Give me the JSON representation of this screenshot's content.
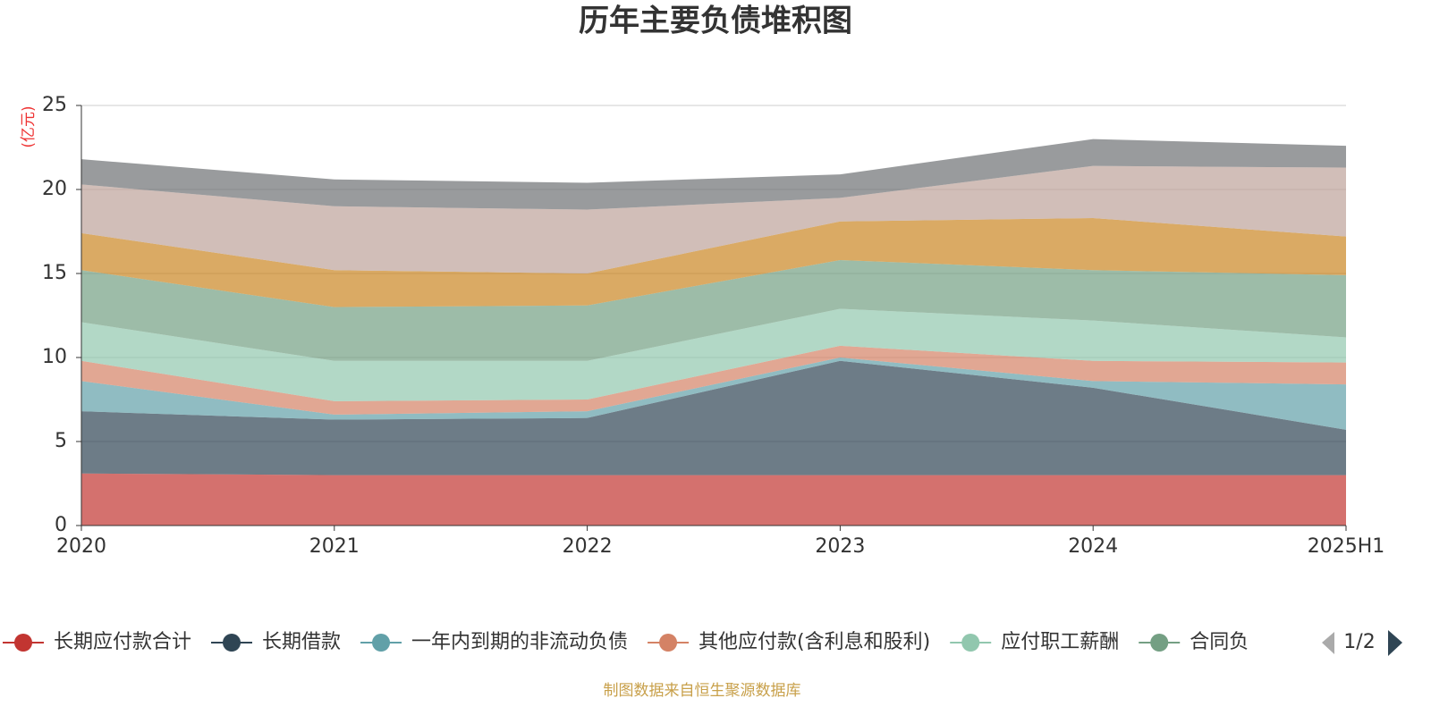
{
  "chart_data": {
    "type": "stacked_area",
    "title": "历年主要负债堆积图",
    "y_axis_label": "(亿元)",
    "source": "制图数据来自恒生聚源数据库",
    "legend_page": "1/2",
    "categories": [
      "2020",
      "2021",
      "2022",
      "2023",
      "2024",
      "2025H1"
    ],
    "ylim": [
      0,
      25
    ],
    "yticks": [
      0,
      5,
      10,
      15,
      20,
      25
    ],
    "grid": true,
    "series": [
      {
        "name": "长期应付款合计",
        "color": "#c23531",
        "values": [
          3.1,
          3.0,
          3.0,
          3.0,
          3.0,
          3.0
        ]
      },
      {
        "name": "长期借款",
        "color": "#2f4554",
        "values": [
          3.7,
          3.3,
          3.4,
          6.8,
          5.2,
          2.7
        ]
      },
      {
        "name": "一年内到期的非流动负债",
        "color": "#61a0a8",
        "values": [
          1.8,
          0.3,
          0.4,
          0.2,
          0.4,
          2.7
        ]
      },
      {
        "name": "其他应付款(含利息和股利)",
        "color": "#d48265",
        "values": [
          1.2,
          0.8,
          0.7,
          0.7,
          1.2,
          1.3
        ]
      },
      {
        "name": "应付职工薪酬",
        "color": "#91c7ae",
        "values": [
          2.3,
          2.4,
          2.3,
          2.2,
          2.4,
          1.5
        ]
      },
      {
        "name": "合同负",
        "color": "#749f83",
        "values": [
          3.1,
          3.2,
          3.3,
          2.9,
          3.0,
          3.7
        ]
      },
      {
        "color": "#ca8622",
        "values": [
          2.2,
          2.2,
          1.9,
          2.3,
          3.1,
          2.3
        ]
      },
      {
        "color": "#bda29a",
        "values": [
          2.9,
          3.8,
          3.8,
          1.4,
          3.1,
          4.1
        ]
      },
      {
        "color": "#6e7074",
        "values": [
          1.5,
          1.6,
          1.6,
          1.4,
          1.6,
          1.3
        ]
      }
    ]
  }
}
